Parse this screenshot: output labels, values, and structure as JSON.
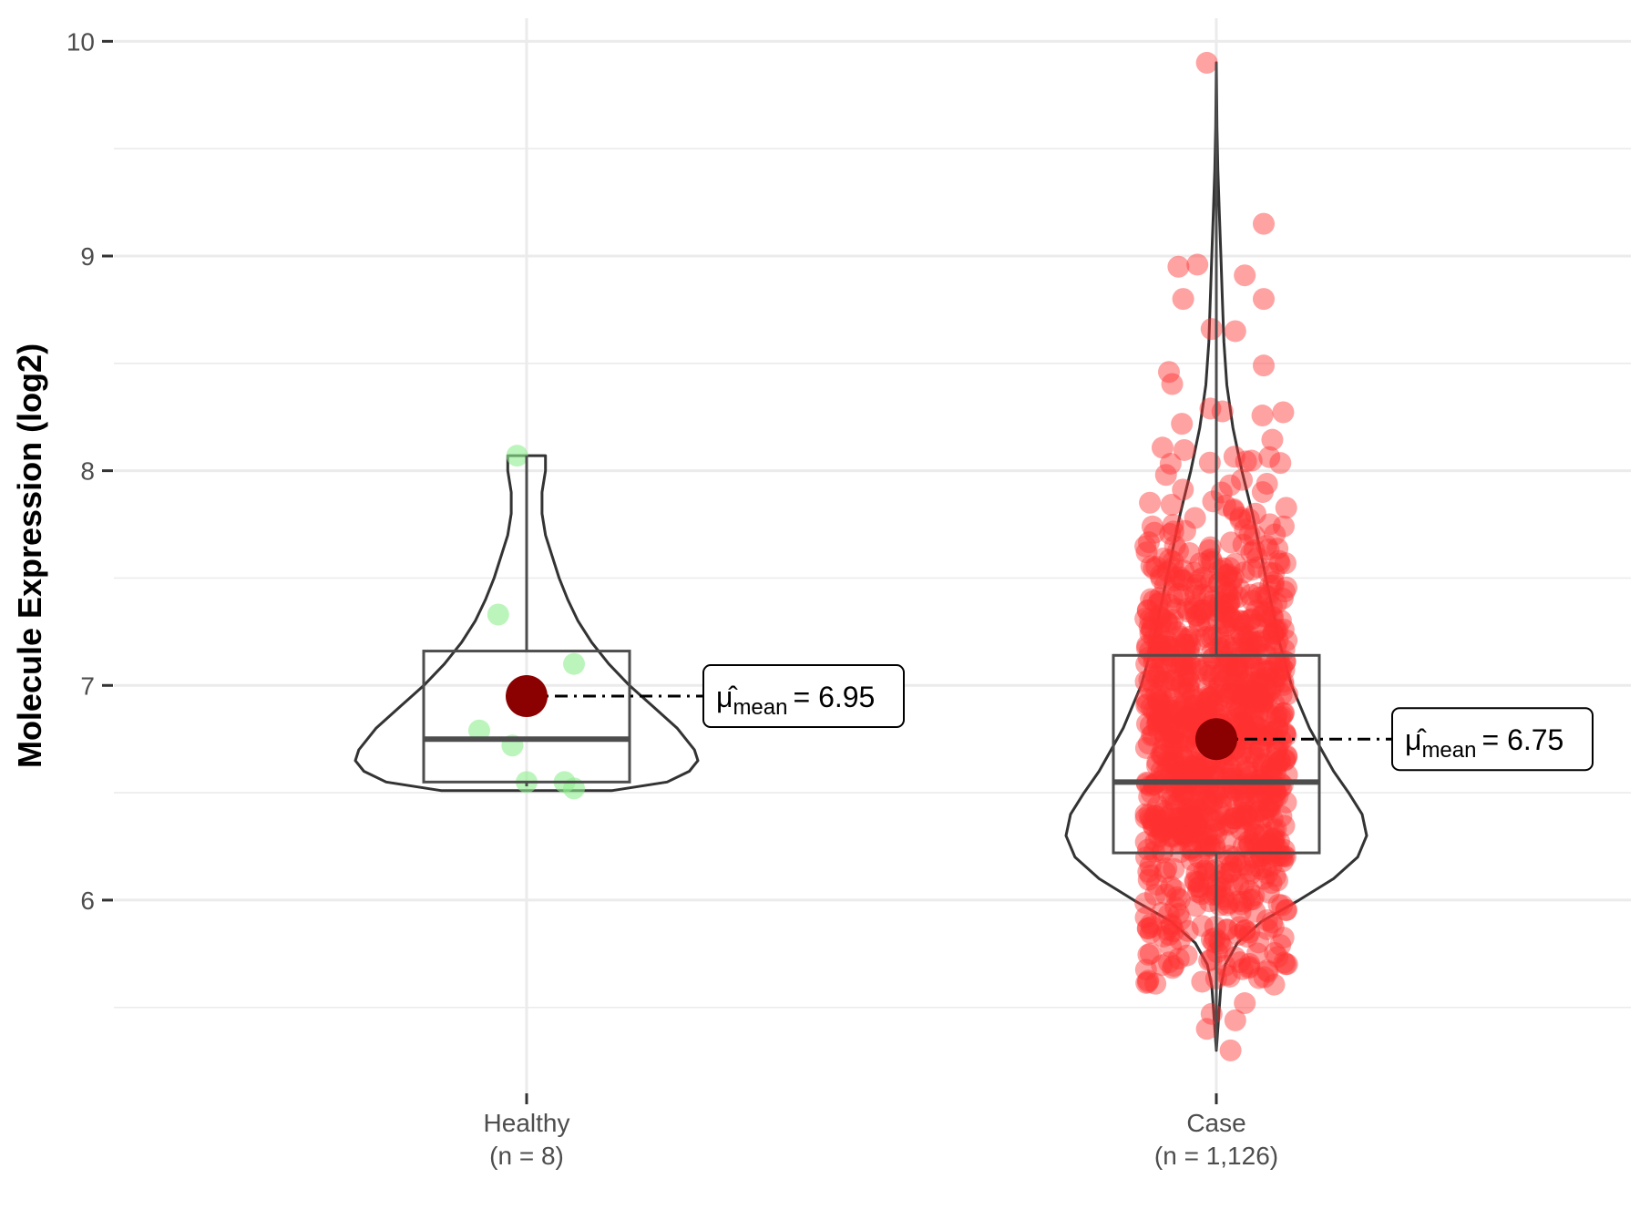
{
  "chart_data": {
    "type": "violin",
    "title": "",
    "xlabel": "",
    "ylabel": "Molecule Expression (log2)",
    "ylim": [
      5.1,
      10.15
    ],
    "yticks": [
      6,
      7,
      8,
      9,
      10
    ],
    "grid": true,
    "colors": {
      "Healthy": "#90EE90",
      "Case": "#FF3030",
      "mean_point": "#8B0000",
      "outline": "#333333"
    },
    "groups": [
      {
        "name": "Healthy",
        "n_label": "(n = 8)",
        "box": {
          "q1": 6.55,
          "median": 6.75,
          "q3": 7.16,
          "whisker_low": 6.53,
          "whisker_high": 8.07
        },
        "violin": {
          "y_min": 6.51,
          "y_max": 8.07,
          "profile": [
            [
              6.51,
              0.5
            ],
            [
              6.55,
              0.82
            ],
            [
              6.6,
              0.95
            ],
            [
              6.65,
              1.0
            ],
            [
              6.7,
              0.98
            ],
            [
              6.8,
              0.88
            ],
            [
              6.9,
              0.74
            ],
            [
              7.0,
              0.6
            ],
            [
              7.1,
              0.48
            ],
            [
              7.2,
              0.38
            ],
            [
              7.3,
              0.3
            ],
            [
              7.4,
              0.24
            ],
            [
              7.5,
              0.19
            ],
            [
              7.6,
              0.15
            ],
            [
              7.7,
              0.11
            ],
            [
              7.8,
              0.09
            ],
            [
              7.9,
              0.09
            ],
            [
              8.0,
              0.11
            ],
            [
              8.07,
              0.11
            ]
          ]
        },
        "points": [
          {
            "x": -0.02,
            "y": 8.07
          },
          {
            "x": -0.06,
            "y": 7.33
          },
          {
            "x": 0.1,
            "y": 7.1
          },
          {
            "x": -0.1,
            "y": 6.79
          },
          {
            "x": -0.03,
            "y": 6.72
          },
          {
            "x": 0.0,
            "y": 6.55
          },
          {
            "x": 0.08,
            "y": 6.55
          },
          {
            "x": 0.1,
            "y": 6.52
          }
        ],
        "mean": 6.95,
        "mean_label": {
          "mu": "μ̂",
          "sub": "mean",
          "eq": "= 6.95"
        }
      },
      {
        "name": "Case",
        "n_label": "(n = 1,126)",
        "box": {
          "q1": 6.22,
          "median": 6.55,
          "q3": 7.14,
          "whisker_low": 5.3,
          "whisker_high": 9.9
        },
        "violin": {
          "y_min": 5.3,
          "y_max": 9.9,
          "profile": [
            [
              5.3,
              0.0
            ],
            [
              5.5,
              0.02
            ],
            [
              5.6,
              0.03
            ],
            [
              5.7,
              0.06
            ],
            [
              5.8,
              0.14
            ],
            [
              5.9,
              0.3
            ],
            [
              6.0,
              0.55
            ],
            [
              6.1,
              0.78
            ],
            [
              6.2,
              0.94
            ],
            [
              6.3,
              1.0
            ],
            [
              6.4,
              0.97
            ],
            [
              6.5,
              0.88
            ],
            [
              6.6,
              0.78
            ],
            [
              6.7,
              0.7
            ],
            [
              6.8,
              0.62
            ],
            [
              6.9,
              0.56
            ],
            [
              7.0,
              0.5
            ],
            [
              7.2,
              0.42
            ],
            [
              7.4,
              0.36
            ],
            [
              7.6,
              0.3
            ],
            [
              7.8,
              0.24
            ],
            [
              8.0,
              0.17
            ],
            [
              8.2,
              0.11
            ],
            [
              8.4,
              0.07
            ],
            [
              8.6,
              0.05
            ],
            [
              8.8,
              0.04
            ],
            [
              9.0,
              0.03
            ],
            [
              9.2,
              0.02
            ],
            [
              9.4,
              0.01
            ],
            [
              9.6,
              0.004
            ],
            [
              9.9,
              0.0
            ]
          ]
        },
        "n_points": 1126,
        "outlier_points": [
          {
            "x": -0.02,
            "y": 9.9
          },
          {
            "x": 0.1,
            "y": 9.15
          },
          {
            "x": 0.06,
            "y": 8.91
          },
          {
            "x": -0.04,
            "y": 8.96
          },
          {
            "x": -0.08,
            "y": 8.95
          },
          {
            "x": -0.07,
            "y": 8.8
          },
          {
            "x": 0.1,
            "y": 8.8
          },
          {
            "x": 0.1,
            "y": 8.49
          },
          {
            "x": -0.1,
            "y": 8.46
          },
          {
            "x": 0.04,
            "y": 8.65
          },
          {
            "x": -0.01,
            "y": 8.66
          },
          {
            "x": 0.06,
            "y": 5.52
          },
          {
            "x": 0.04,
            "y": 5.44
          },
          {
            "x": 0.03,
            "y": 5.3
          },
          {
            "x": -0.02,
            "y": 5.4
          },
          {
            "x": -0.01,
            "y": 5.47
          },
          {
            "x": -0.03,
            "y": 5.62
          },
          {
            "x": -0.1,
            "y": 5.71
          },
          {
            "x": 0.07,
            "y": 5.69
          }
        ],
        "mean": 6.75,
        "mean_label": {
          "mu": "μ̂",
          "sub": "mean",
          "eq": "= 6.75"
        }
      }
    ]
  }
}
